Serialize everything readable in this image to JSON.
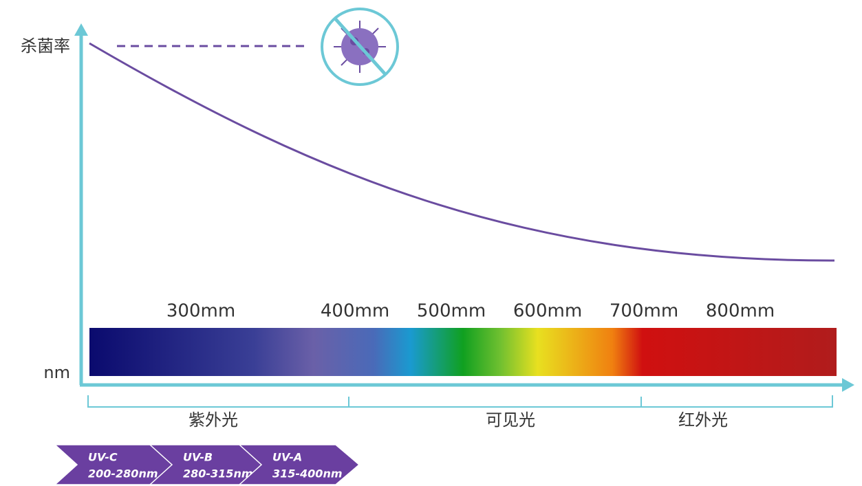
{
  "axes": {
    "y_label": "杀菌率",
    "x_label": "nm"
  },
  "wavelength_labels": [
    "300mm",
    "400mm",
    "500mm",
    "600mm",
    "700mm",
    "800mm"
  ],
  "regions": [
    "紫外光",
    "可见光",
    "红外光"
  ],
  "uv_bands": [
    {
      "name": "UV-C",
      "range": "200-280nm"
    },
    {
      "name": "UV-B",
      "range": "280-315nm"
    },
    {
      "name": "UV-A",
      "range": "315-400nm"
    }
  ]
}
